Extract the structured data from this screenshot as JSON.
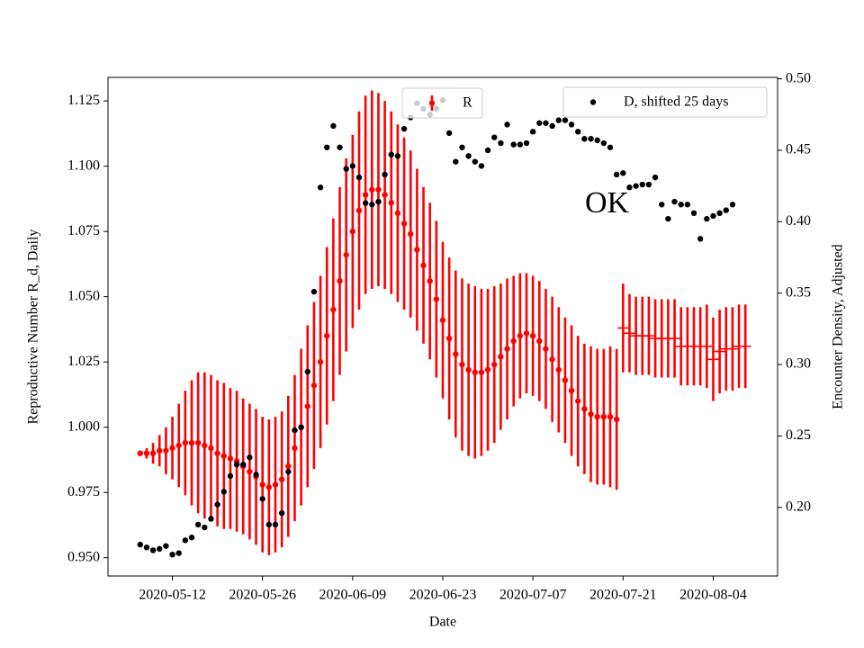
{
  "chart_data": {
    "type": "errorbar",
    "annotation": "OK",
    "xlabel": "Date",
    "ylabel": "Reproductive Number R_d, Daily",
    "y2label": "Encounter Density, Adjusted",
    "ylabel_color": "#ff0000",
    "xlim": [
      "2020-05-02",
      "2020-08-14"
    ],
    "xticks": [
      "2020-05-12",
      "2020-05-26",
      "2020-06-09",
      "2020-06-23",
      "2020-07-07",
      "2020-07-21",
      "2020-08-04"
    ],
    "ylim": [
      0.943,
      1.134
    ],
    "yticks": [
      {
        "value": 0.95,
        "label": "0.950"
      },
      {
        "value": 0.975,
        "label": "0.975"
      },
      {
        "value": 1.0,
        "label": "1.000"
      },
      {
        "value": 1.025,
        "label": "1.025"
      },
      {
        "value": 1.05,
        "label": "1.050"
      },
      {
        "value": 1.075,
        "label": "1.075"
      },
      {
        "value": 1.1,
        "label": "1.100"
      },
      {
        "value": 1.125,
        "label": "1.125"
      }
    ],
    "y2lim": [
      0.152,
      0.501
    ],
    "y2ticks": [
      {
        "value": 0.2,
        "label": "0.20"
      },
      {
        "value": 0.25,
        "label": "0.25"
      },
      {
        "value": 0.3,
        "label": "0.30"
      },
      {
        "value": 0.35,
        "label": "0.35"
      },
      {
        "value": 0.4,
        "label": "0.40"
      },
      {
        "value": 0.45,
        "label": "0.45"
      },
      {
        "value": 0.5,
        "label": "0.50"
      }
    ],
    "series": [
      {
        "name": "R",
        "color": "#ff0000",
        "marker": "dot",
        "legend_loc": "upper center",
        "x": [
          "2020-05-07",
          "2020-05-08",
          "2020-05-09",
          "2020-05-10",
          "2020-05-11",
          "2020-05-12",
          "2020-05-13",
          "2020-05-14",
          "2020-05-15",
          "2020-05-16",
          "2020-05-17",
          "2020-05-18",
          "2020-05-19",
          "2020-05-20",
          "2020-05-21",
          "2020-05-22",
          "2020-05-23",
          "2020-05-24",
          "2020-05-25",
          "2020-05-26",
          "2020-05-27",
          "2020-05-28",
          "2020-05-29",
          "2020-05-30",
          "2020-05-31",
          "2020-06-01",
          "2020-06-02",
          "2020-06-03",
          "2020-06-04",
          "2020-06-05",
          "2020-06-06",
          "2020-06-07",
          "2020-06-08",
          "2020-06-09",
          "2020-06-10",
          "2020-06-11",
          "2020-06-12",
          "2020-06-13",
          "2020-06-14",
          "2020-06-15",
          "2020-06-16",
          "2020-06-17",
          "2020-06-18",
          "2020-06-19",
          "2020-06-20",
          "2020-06-21",
          "2020-06-22",
          "2020-06-23",
          "2020-06-24",
          "2020-06-25",
          "2020-06-26",
          "2020-06-27",
          "2020-06-28",
          "2020-06-29",
          "2020-06-30",
          "2020-07-01",
          "2020-07-02",
          "2020-07-03",
          "2020-07-04",
          "2020-07-05",
          "2020-07-06",
          "2020-07-07",
          "2020-07-08",
          "2020-07-09",
          "2020-07-10",
          "2020-07-11",
          "2020-07-12",
          "2020-07-13",
          "2020-07-14",
          "2020-07-15",
          "2020-07-16",
          "2020-07-17",
          "2020-07-18",
          "2020-07-19",
          "2020-07-20"
        ],
        "values": [
          0.99,
          0.99,
          0.99,
          0.991,
          0.991,
          0.992,
          0.993,
          0.994,
          0.994,
          0.994,
          0.993,
          0.992,
          0.99,
          0.989,
          0.988,
          0.987,
          0.985,
          0.983,
          0.981,
          0.978,
          0.977,
          0.978,
          0.98,
          0.985,
          0.992,
          1.0,
          1.008,
          1.016,
          1.025,
          1.035,
          1.045,
          1.056,
          1.066,
          1.075,
          1.083,
          1.089,
          1.091,
          1.091,
          1.089,
          1.086,
          1.082,
          1.078,
          1.074,
          1.068,
          1.062,
          1.056,
          1.049,
          1.041,
          1.034,
          1.028,
          1.024,
          1.022,
          1.021,
          1.021,
          1.022,
          1.024,
          1.027,
          1.03,
          1.033,
          1.035,
          1.036,
          1.035,
          1.033,
          1.03,
          1.026,
          1.022,
          1.018,
          1.014,
          1.01,
          1.007,
          1.005,
          1.004,
          1.004,
          1.004,
          1.003
        ],
        "errors": [
          0.001,
          0.002,
          0.004,
          0.006,
          0.009,
          0.012,
          0.016,
          0.02,
          0.024,
          0.027,
          0.028,
          0.028,
          0.028,
          0.028,
          0.027,
          0.027,
          0.026,
          0.026,
          0.026,
          0.026,
          0.026,
          0.026,
          0.026,
          0.027,
          0.028,
          0.03,
          0.031,
          0.032,
          0.033,
          0.034,
          0.035,
          0.036,
          0.037,
          0.037,
          0.038,
          0.038,
          0.038,
          0.037,
          0.036,
          0.035,
          0.034,
          0.033,
          0.032,
          0.031,
          0.03,
          0.03,
          0.03,
          0.03,
          0.031,
          0.032,
          0.033,
          0.033,
          0.033,
          0.032,
          0.031,
          0.03,
          0.028,
          0.027,
          0.025,
          0.024,
          0.023,
          0.023,
          0.023,
          0.023,
          0.024,
          0.024,
          0.024,
          0.025,
          0.025,
          0.025,
          0.026,
          0.026,
          0.026,
          0.027,
          0.027
        ]
      },
      {
        "color": "#ff0000",
        "marker": "hline",
        "x": [
          "2020-07-21",
          "2020-07-22",
          "2020-07-23",
          "2020-07-24",
          "2020-07-25",
          "2020-07-26",
          "2020-07-27",
          "2020-07-28",
          "2020-07-29",
          "2020-07-30",
          "2020-07-31",
          "2020-08-01",
          "2020-08-02",
          "2020-08-03",
          "2020-08-04",
          "2020-08-05",
          "2020-08-06",
          "2020-08-07",
          "2020-08-08",
          "2020-08-09"
        ],
        "values": [
          1.038,
          1.036,
          1.035,
          1.035,
          1.035,
          1.034,
          1.034,
          1.034,
          1.034,
          1.031,
          1.031,
          1.031,
          1.031,
          1.031,
          1.026,
          1.029,
          1.03,
          1.03,
          1.031,
          1.031
        ],
        "errors": [
          0.017,
          0.015,
          0.015,
          0.015,
          0.015,
          0.015,
          0.015,
          0.015,
          0.015,
          0.015,
          0.015,
          0.015,
          0.015,
          0.016,
          0.016,
          0.016,
          0.016,
          0.016,
          0.016,
          0.016
        ]
      },
      {
        "name": "D, shifted 25 days",
        "color": "#000000",
        "marker": "dot",
        "axis": "y2",
        "legend_loc": "upper right",
        "x": [
          "2020-05-07",
          "2020-05-08",
          "2020-05-09",
          "2020-05-10",
          "2020-05-11",
          "2020-05-12",
          "2020-05-13",
          "2020-05-14",
          "2020-05-15",
          "2020-05-16",
          "2020-05-17",
          "2020-05-18",
          "2020-05-19",
          "2020-05-20",
          "2020-05-21",
          "2020-05-22",
          "2020-05-23",
          "2020-05-24",
          "2020-05-25",
          "2020-05-26",
          "2020-05-27",
          "2020-05-28",
          "2020-05-29",
          "2020-05-30",
          "2020-05-31",
          "2020-06-01",
          "2020-06-02",
          "2020-06-03",
          "2020-06-04",
          "2020-06-05",
          "2020-06-06",
          "2020-06-07",
          "2020-06-08",
          "2020-06-09",
          "2020-06-10",
          "2020-06-11",
          "2020-06-12",
          "2020-06-13",
          "2020-06-14",
          "2020-06-15",
          "2020-06-16",
          "2020-06-17",
          "2020-06-18",
          "2020-06-19",
          "2020-06-20",
          "2020-06-21",
          "2020-06-22",
          "2020-06-23",
          "2020-06-24",
          "2020-06-25",
          "2020-06-26",
          "2020-06-27",
          "2020-06-28",
          "2020-06-29",
          "2020-06-30",
          "2020-07-01",
          "2020-07-02",
          "2020-07-03",
          "2020-07-04",
          "2020-07-05",
          "2020-07-06",
          "2020-07-07",
          "2020-07-08",
          "2020-07-09",
          "2020-07-10",
          "2020-07-11",
          "2020-07-12",
          "2020-07-13",
          "2020-07-14",
          "2020-07-15",
          "2020-07-16",
          "2020-07-17",
          "2020-07-18",
          "2020-07-19",
          "2020-07-20",
          "2020-07-21",
          "2020-07-22",
          "2020-07-23",
          "2020-07-24",
          "2020-07-25",
          "2020-07-26",
          "2020-07-27",
          "2020-07-28",
          "2020-07-29",
          "2020-07-30",
          "2020-07-31",
          "2020-08-01",
          "2020-08-02",
          "2020-08-03",
          "2020-08-04",
          "2020-08-05",
          "2020-08-06",
          "2020-08-07"
        ],
        "values": [
          0.174,
          0.172,
          0.17,
          0.171,
          0.173,
          0.167,
          0.168,
          0.177,
          0.179,
          0.188,
          0.186,
          0.192,
          0.202,
          0.211,
          0.222,
          0.23,
          0.23,
          0.235,
          0.223,
          0.206,
          0.188,
          0.188,
          0.196,
          0.225,
          0.254,
          0.256,
          0.295,
          0.351,
          0.424,
          0.452,
          0.467,
          0.452,
          0.437,
          0.439,
          0.431,
          0.413,
          0.412,
          0.414,
          0.433,
          0.447,
          0.446,
          0.465,
          0.473,
          0.483,
          0.479,
          0.475,
          0.479,
          0.485,
          0.462,
          0.442,
          0.452,
          0.446,
          0.442,
          0.439,
          0.45,
          0.459,
          0.455,
          0.468,
          0.454,
          0.454,
          0.455,
          0.463,
          0.469,
          0.469,
          0.467,
          0.471,
          0.471,
          0.468,
          0.463,
          0.458,
          0.458,
          0.457,
          0.455,
          0.452,
          0.433,
          0.434,
          0.424,
          0.425,
          0.426,
          0.426,
          0.431,
          0.412,
          0.402,
          0.414,
          0.412,
          0.412,
          0.406,
          0.388,
          0.402,
          0.404,
          0.406,
          0.408,
          0.412
        ]
      }
    ]
  }
}
